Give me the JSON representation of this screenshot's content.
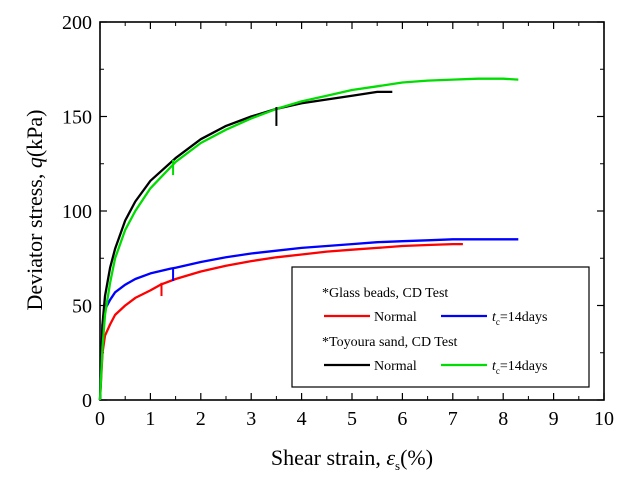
{
  "chart_data": {
    "type": "line",
    "title": "",
    "xlabel_text": "Shear strain, ",
    "xlabel_symbol": "ε",
    "xlabel_sub": "s",
    "xlabel_unit": "(%)",
    "ylabel_text": "Deviator stress, ",
    "ylabel_symbol": "q",
    "ylabel_unit": "(kPa)",
    "xlim": [
      0,
      10
    ],
    "ylim": [
      0,
      200
    ],
    "xticks": [
      "0",
      "1",
      "2",
      "3",
      "4",
      "5",
      "6",
      "7",
      "8",
      "9",
      "10"
    ],
    "yticks": [
      "0",
      "50",
      "100",
      "150",
      "200"
    ],
    "grid": false,
    "legend": {
      "placement": "bottom-right",
      "group1_title": "*Glass beads, CD Test",
      "group2_title": "*Toyoura sand, CD Test",
      "normal_label": "Normal",
      "aged_symbol": "t",
      "aged_sub": "c",
      "aged_value": "=14days"
    },
    "series": [
      {
        "group": "Glass beads",
        "label": "Normal",
        "color": "#ff0000",
        "x": [
          0,
          0.05,
          0.1,
          0.2,
          0.3,
          0.5,
          0.7,
          1.0,
          1.2,
          1.5,
          2.0,
          2.5,
          3.0,
          3.5,
          4.0,
          4.5,
          5.0,
          5.5,
          6.0,
          6.5,
          7.0,
          7.2
        ],
        "y": [
          0,
          25,
          34,
          40,
          45,
          50,
          54,
          58,
          61,
          64,
          68,
          71,
          73.5,
          75.5,
          77,
          78.5,
          79.5,
          80.5,
          81.5,
          82,
          82.5,
          82.5
        ]
      },
      {
        "group": "Glass beads",
        "label": "tc=14days",
        "color": "#0000ff",
        "x": [
          0,
          0.05,
          0.1,
          0.2,
          0.3,
          0.5,
          0.7,
          1.0,
          1.4,
          1.5,
          2.0,
          2.5,
          3.0,
          3.5,
          4.0,
          4.5,
          5.0,
          5.5,
          6.0,
          6.5,
          7.0,
          7.5,
          8.0,
          8.3
        ],
        "y": [
          0,
          40,
          48,
          53,
          57,
          61,
          64,
          67,
          69.5,
          70,
          73,
          75.5,
          77.5,
          79,
          80.5,
          81.5,
          82.5,
          83.5,
          84,
          84.5,
          85,
          85,
          85,
          85
        ]
      },
      {
        "group": "Toyoura sand",
        "label": "Normal",
        "color": "#000000",
        "x": [
          0,
          0.05,
          0.1,
          0.2,
          0.3,
          0.5,
          0.7,
          1.0,
          1.5,
          2.0,
          2.5,
          3.0,
          3.5,
          4.0,
          4.5,
          5.0,
          5.5,
          5.8
        ],
        "y": [
          0,
          40,
          55,
          70,
          80,
          95,
          105,
          116,
          128,
          138,
          145,
          150,
          154,
          157,
          159,
          161,
          163,
          163
        ]
      },
      {
        "group": "Toyoura sand",
        "label": "tc=14days",
        "color": "#00dd00",
        "x": [
          0,
          0.05,
          0.1,
          0.2,
          0.3,
          0.5,
          0.7,
          1.0,
          1.5,
          2.0,
          2.5,
          3.0,
          3.5,
          4.0,
          4.5,
          5.0,
          5.5,
          6.0,
          6.5,
          7.0,
          7.5,
          8.0,
          8.3
        ],
        "y": [
          0,
          28,
          45,
          62,
          75,
          90,
          100,
          112,
          126,
          136,
          143,
          149,
          154,
          158,
          161,
          164,
          166,
          168,
          169,
          169.5,
          170,
          170,
          169.5
        ]
      }
    ],
    "drops": [
      {
        "color": "#ff0000",
        "x": 1.22,
        "y_top": 62,
        "y_bottom": 55
      },
      {
        "color": "#0000ff",
        "x": 1.45,
        "y_top": 69.5,
        "y_bottom": 63
      },
      {
        "color": "#00dd00",
        "x": 1.45,
        "y_top": 127,
        "y_bottom": 119
      },
      {
        "color": "#000000",
        "x": 3.5,
        "y_top": 155,
        "y_bottom": 145
      }
    ]
  }
}
